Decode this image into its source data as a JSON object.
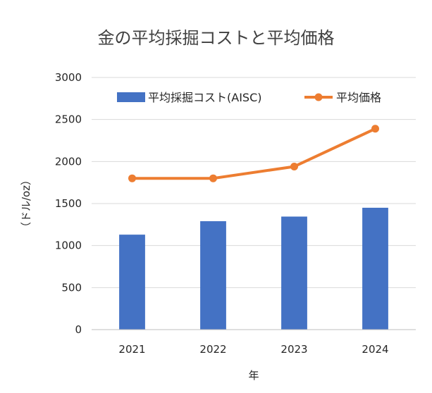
{
  "chart_data": {
    "type": "bar",
    "title": "金の平均採掘コストと平均価格",
    "xlabel": "年",
    "ylabel": "（ドル/oz）",
    "categories": [
      "2021",
      "2022",
      "2023",
      "2024"
    ],
    "ylim": [
      0,
      3000
    ],
    "yticks": [
      0,
      500,
      1000,
      1500,
      2000,
      2500,
      3000
    ],
    "grid": true,
    "legend_position": "top",
    "series": [
      {
        "name": "平均採掘コスト(AISC)",
        "kind": "bar",
        "color": "#4472C4",
        "values": [
          1130,
          1290,
          1345,
          1450
        ]
      },
      {
        "name": "平均価格",
        "kind": "line",
        "color": "#ED7D31",
        "values": [
          1800,
          1800,
          1940,
          2390
        ]
      }
    ]
  }
}
